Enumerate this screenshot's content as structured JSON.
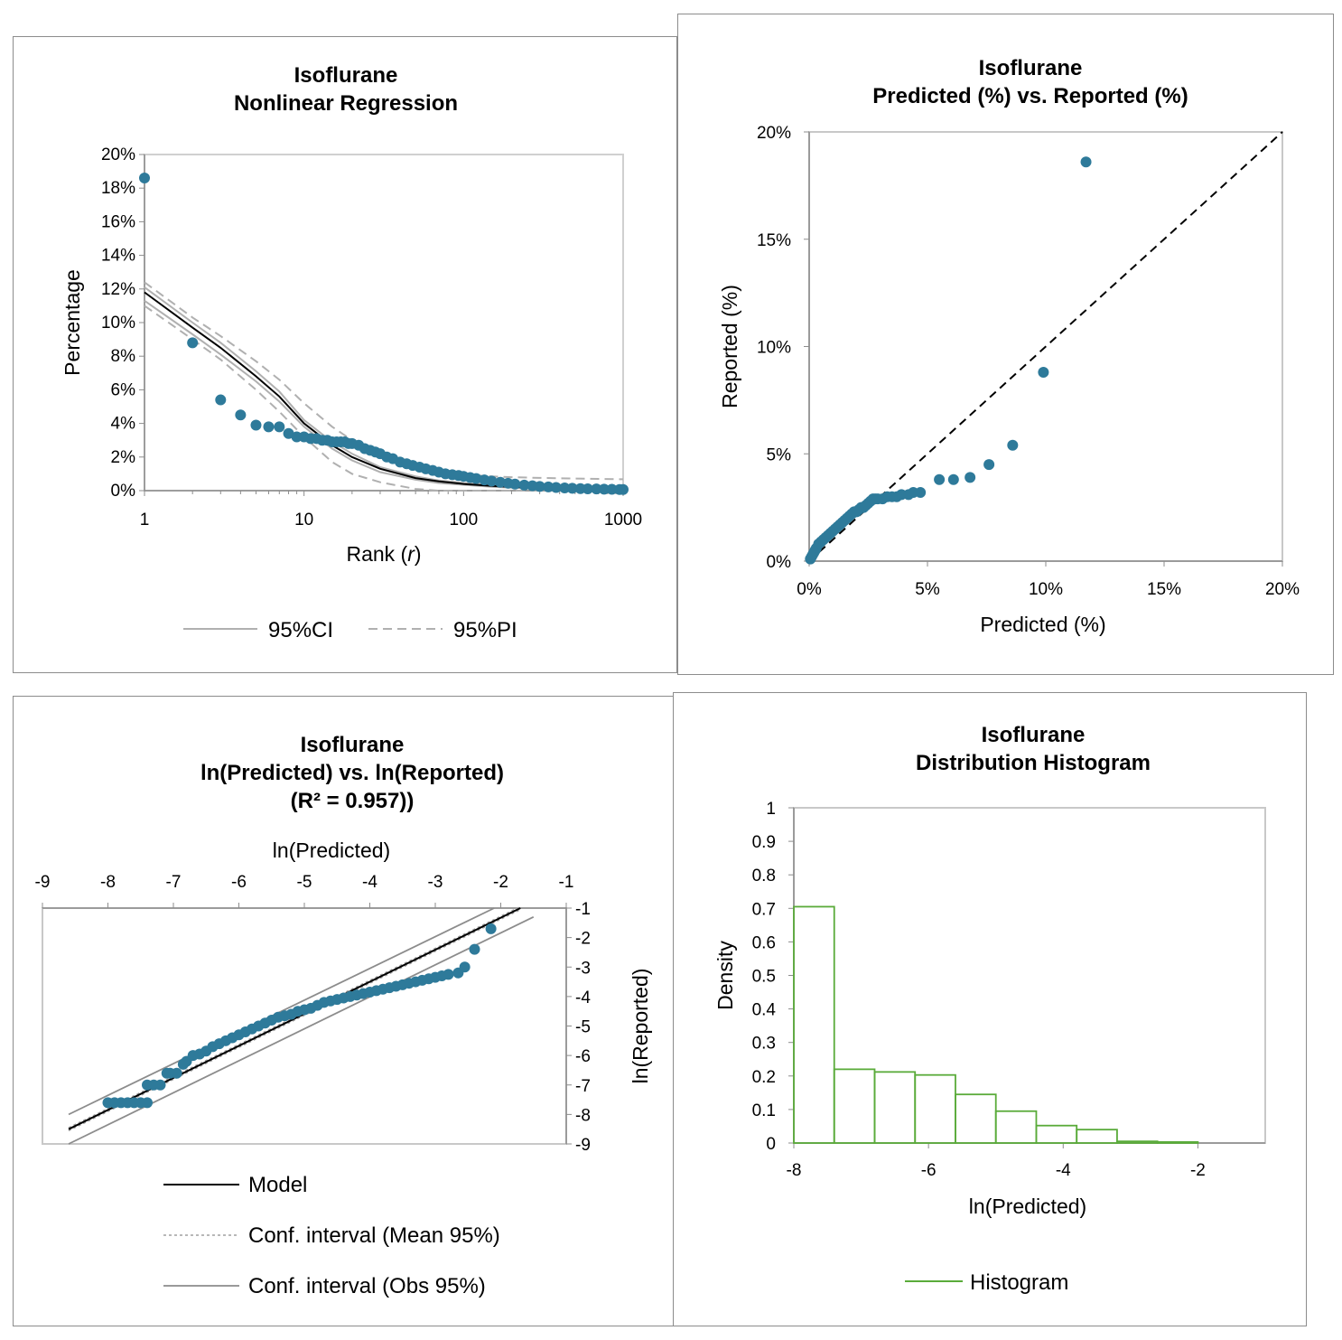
{
  "chart_data": [
    {
      "id": "regression",
      "type": "scatter",
      "title": [
        "Isoflurane",
        "Nonlinear Regression"
      ],
      "xlabel": "Rank (",
      "xlabel_italic": "r",
      "xlabel_suffix": ")",
      "ylabel": "Percentage",
      "x_scale": "log",
      "xlim": [
        1,
        1000
      ],
      "ylim": [
        0,
        0.2
      ],
      "x_ticks": [
        1,
        10,
        100,
        1000
      ],
      "x_tick_labels": [
        "1",
        "10",
        "100",
        "1000"
      ],
      "y_ticks": [
        0,
        0.02,
        0.04,
        0.06,
        0.08,
        0.1,
        0.12,
        0.14,
        0.16,
        0.18,
        0.2
      ],
      "y_tick_labels": [
        "0%",
        "2%",
        "4%",
        "6%",
        "8%",
        "10%",
        "12%",
        "14%",
        "16%",
        "18%",
        "20%"
      ],
      "series": [
        {
          "kind": "points",
          "color": "#2e7a9a",
          "x": [
            1,
            2,
            3,
            4,
            5,
            6,
            7,
            8,
            9,
            10,
            11,
            12,
            13,
            14,
            15,
            16,
            17,
            18,
            19,
            20,
            22,
            24,
            26,
            28,
            30,
            33,
            36,
            40,
            44,
            48,
            53,
            58,
            64,
            70,
            77,
            85,
            93,
            100,
            110,
            120,
            135,
            150,
            170,
            190,
            210,
            240,
            270,
            300,
            340,
            380,
            430,
            480,
            540,
            600,
            680,
            760,
            850,
            950,
            1000
          ],
          "y": [
            0.186,
            0.088,
            0.054,
            0.045,
            0.039,
            0.038,
            0.038,
            0.034,
            0.032,
            0.032,
            0.031,
            0.031,
            0.03,
            0.03,
            0.029,
            0.029,
            0.029,
            0.029,
            0.028,
            0.028,
            0.027,
            0.025,
            0.024,
            0.023,
            0.022,
            0.02,
            0.019,
            0.017,
            0.016,
            0.015,
            0.014,
            0.013,
            0.012,
            0.011,
            0.01,
            0.0095,
            0.009,
            0.0085,
            0.0078,
            0.0072,
            0.0064,
            0.0057,
            0.005,
            0.0044,
            0.0039,
            0.0033,
            0.0029,
            0.0025,
            0.0022,
            0.0019,
            0.0016,
            0.0014,
            0.0012,
            0.0011,
            0.001,
            0.0009,
            0.0008,
            0.0007,
            0.0007
          ]
        },
        {
          "kind": "model",
          "color": "#000000",
          "x": [
            1,
            2,
            3,
            5,
            7,
            10,
            15,
            20,
            30,
            50,
            70,
            100,
            150,
            200,
            300,
            500,
            700,
            1000
          ],
          "y": [
            0.118,
            0.097,
            0.085,
            0.068,
            0.056,
            0.04,
            0.027,
            0.02,
            0.013,
            0.0075,
            0.0055,
            0.004,
            0.0028,
            0.0022,
            0.0016,
            0.0011,
            0.0009,
            0.0007
          ]
        },
        {
          "name": "95%CI",
          "kind": "ci",
          "color": "#b0b0b0",
          "x": [
            1,
            2,
            3,
            5,
            7,
            10,
            15,
            20,
            30,
            50,
            70,
            100,
            150,
            200,
            300,
            500,
            700,
            1000
          ],
          "upper": [
            0.121,
            0.1,
            0.088,
            0.071,
            0.059,
            0.042,
            0.029,
            0.022,
            0.014,
            0.0085,
            0.006,
            0.0045,
            0.0033,
            0.0027,
            0.002,
            0.0015,
            0.0012,
            0.001
          ],
          "lower": [
            0.113,
            0.093,
            0.081,
            0.065,
            0.053,
            0.038,
            0.025,
            0.018,
            0.011,
            0.0065,
            0.0045,
            0.0035,
            0.0023,
            0.0018,
            0.0012,
            0.0008,
            0.0006,
            0.0005
          ]
        },
        {
          "name": "95%PI",
          "kind": "pi",
          "color": "#b0b0b0",
          "x": [
            1,
            2,
            3,
            5,
            7,
            10,
            15,
            20,
            30,
            50,
            70,
            100,
            150,
            200,
            300,
            500,
            700,
            1000
          ],
          "upper": [
            0.124,
            0.103,
            0.092,
            0.077,
            0.066,
            0.052,
            0.038,
            0.03,
            0.021,
            0.014,
            0.011,
            0.0095,
            0.0085,
            0.008,
            0.0076,
            0.0072,
            0.007,
            0.0068
          ],
          "lower": [
            0.11,
            0.09,
            0.078,
            0.06,
            0.047,
            0.032,
            0.017,
            0.01,
            0.005,
            0.001,
            0.0,
            0.0,
            0.0,
            0.0,
            0.0,
            0.0,
            0.0,
            0.0
          ]
        }
      ],
      "legend": [
        "95%CI",
        "95%PI"
      ],
      "legend_position": "bottom"
    },
    {
      "id": "pred_vs_rep",
      "type": "scatter",
      "title": [
        "Isoflurane",
        "Predicted (%) vs. Reported (%)"
      ],
      "xlabel": "Predicted (%)",
      "ylabel": "Reported (%)",
      "xlim": [
        0,
        0.2
      ],
      "ylim": [
        0,
        0.2
      ],
      "x_ticks": [
        0,
        0.05,
        0.1,
        0.15,
        0.2
      ],
      "x_tick_labels": [
        "0%",
        "5%",
        "10%",
        "15%",
        "20%"
      ],
      "y_ticks": [
        0,
        0.05,
        0.1,
        0.15,
        0.2
      ],
      "y_tick_labels": [
        "0%",
        "5%",
        "10%",
        "15%",
        "20%"
      ],
      "identity_line": {
        "from": [
          0,
          0
        ],
        "to": [
          0.2,
          0.2
        ],
        "style": "dashed",
        "color": "#000000"
      },
      "points": {
        "color": "#2e7a9a",
        "x": [
          0.117,
          0.099,
          0.086,
          0.076,
          0.068,
          0.061,
          0.055,
          0.047,
          0.044,
          0.042,
          0.039,
          0.037,
          0.035,
          0.033,
          0.031,
          0.029,
          0.028,
          0.027,
          0.026,
          0.025,
          0.024,
          0.023,
          0.022,
          0.021,
          0.02,
          0.019,
          0.018,
          0.017,
          0.016,
          0.015,
          0.014,
          0.013,
          0.012,
          0.011,
          0.01,
          0.009,
          0.008,
          0.007,
          0.006,
          0.005,
          0.004,
          0.003,
          0.0025,
          0.002,
          0.0015,
          0.001,
          0.0005
        ],
        "y": [
          0.186,
          0.088,
          0.054,
          0.045,
          0.039,
          0.038,
          0.038,
          0.032,
          0.032,
          0.031,
          0.031,
          0.03,
          0.03,
          0.03,
          0.029,
          0.029,
          0.029,
          0.029,
          0.028,
          0.027,
          0.026,
          0.025,
          0.025,
          0.024,
          0.023,
          0.023,
          0.022,
          0.021,
          0.02,
          0.019,
          0.018,
          0.017,
          0.016,
          0.015,
          0.014,
          0.013,
          0.012,
          0.011,
          0.01,
          0.009,
          0.008,
          0.006,
          0.005,
          0.004,
          0.003,
          0.002,
          0.001
        ]
      }
    },
    {
      "id": "ln_pred_vs_ln_rep",
      "type": "scatter",
      "title": [
        "Isoflurane",
        "ln(Predicted) vs. ln(Reported)",
        "(R² = 0.957))"
      ],
      "xlabel": "ln(Predicted)",
      "ylabel": "ln(Reported)",
      "x_axis_position": "top",
      "y_axis_position": "right",
      "xlim": [
        -9,
        -1
      ],
      "ylim": [
        -9,
        -1
      ],
      "x_ticks": [
        -9,
        -8,
        -7,
        -6,
        -5,
        -4,
        -3,
        -2,
        -1
      ],
      "x_tick_labels": [
        "-9",
        "-8",
        "-7",
        "-6",
        "-5",
        "-4",
        "-3",
        "-2",
        "-1"
      ],
      "y_ticks": [
        -1,
        -2,
        -3,
        -4,
        -5,
        -6,
        -7,
        -8,
        -9
      ],
      "y_tick_labels": [
        "-1",
        "-2",
        "-3",
        "-4",
        "-5",
        "-6",
        "-7",
        "-8",
        "-9"
      ],
      "model_line": {
        "x": [
          -8.6,
          -1.7
        ],
        "y": [
          -8.5,
          -1.0
        ]
      },
      "conf_mean": {
        "upper": {
          "x": [
            -8.6,
            -1.7
          ],
          "y": [
            -8.45,
            -0.95
          ]
        },
        "lower": {
          "x": [
            -8.6,
            -1.7
          ],
          "y": [
            -8.55,
            -1.05
          ]
        }
      },
      "conf_obs": {
        "upper": {
          "x": [
            -8.6,
            -2.1
          ],
          "y": [
            -8.0,
            -1.0
          ]
        },
        "lower": {
          "x": [
            -8.6,
            -1.5
          ],
          "y": [
            -9.0,
            -1.3
          ]
        }
      },
      "points": {
        "color": "#2e7a9a",
        "x": [
          -8.0,
          -7.9,
          -7.8,
          -7.7,
          -7.6,
          -7.5,
          -7.4,
          -7.4,
          -7.3,
          -7.2,
          -7.1,
          -7.05,
          -6.95,
          -6.85,
          -6.8,
          -6.7,
          -6.6,
          -6.5,
          -6.4,
          -6.3,
          -6.2,
          -6.1,
          -6.0,
          -5.9,
          -5.8,
          -5.7,
          -5.6,
          -5.5,
          -5.4,
          -5.3,
          -5.2,
          -5.1,
          -5.0,
          -4.9,
          -4.8,
          -4.7,
          -4.6,
          -4.5,
          -4.4,
          -4.3,
          -4.2,
          -4.1,
          -4.0,
          -3.9,
          -3.8,
          -3.7,
          -3.6,
          -3.5,
          -3.4,
          -3.3,
          -3.2,
          -3.1,
          -3.0,
          -2.9,
          -2.8,
          -2.65,
          -2.55,
          -2.4,
          -2.15
        ],
        "y": [
          -7.6,
          -7.6,
          -7.6,
          -7.6,
          -7.6,
          -7.6,
          -7.6,
          -7.0,
          -7.0,
          -7.0,
          -6.6,
          -6.6,
          -6.6,
          -6.3,
          -6.2,
          -6.0,
          -5.95,
          -5.85,
          -5.7,
          -5.6,
          -5.5,
          -5.4,
          -5.3,
          -5.2,
          -5.1,
          -5.0,
          -4.9,
          -4.8,
          -4.7,
          -4.65,
          -4.6,
          -4.5,
          -4.45,
          -4.4,
          -4.3,
          -4.2,
          -4.15,
          -4.1,
          -4.05,
          -4.0,
          -3.95,
          -3.9,
          -3.85,
          -3.8,
          -3.75,
          -3.7,
          -3.65,
          -3.6,
          -3.55,
          -3.5,
          -3.45,
          -3.4,
          -3.35,
          -3.3,
          -3.25,
          -3.2,
          -3.0,
          -2.4,
          -1.7
        ]
      },
      "legend": [
        "Model",
        "Conf. interval (Mean 95%)",
        "Conf. interval (Obs 95%)"
      ],
      "legend_position": "bottom"
    },
    {
      "id": "histogram",
      "type": "bar",
      "title": [
        "Isoflurane",
        "Distribution Histogram"
      ],
      "xlabel": "ln(Predicted)",
      "ylabel": "Density",
      "xlim": [
        -8,
        -1
      ],
      "ylim": [
        0,
        1
      ],
      "x_ticks": [
        -8,
        -6,
        -4,
        -2
      ],
      "x_tick_labels": [
        "-8",
        "-6",
        "-4",
        "-2"
      ],
      "y_ticks": [
        0,
        0.1,
        0.2,
        0.3,
        0.4,
        0.5,
        0.6,
        0.7,
        0.8,
        0.9,
        1
      ],
      "y_tick_labels": [
        "0",
        "0.1",
        "0.2",
        "0.3",
        "0.4",
        "0.5",
        "0.6",
        "0.7",
        "0.8",
        "0.9",
        "1"
      ],
      "bin_edges": [
        -8.0,
        -7.4,
        -6.8,
        -6.2,
        -5.6,
        -5.0,
        -4.4,
        -3.8,
        -3.2,
        -2.6,
        -2.0
      ],
      "density": [
        0.705,
        0.22,
        0.212,
        0.203,
        0.145,
        0.095,
        0.052,
        0.04,
        0.005,
        0.003
      ],
      "color": "#5aab3a",
      "legend": [
        "Histogram"
      ],
      "legend_position": "bottom"
    }
  ]
}
